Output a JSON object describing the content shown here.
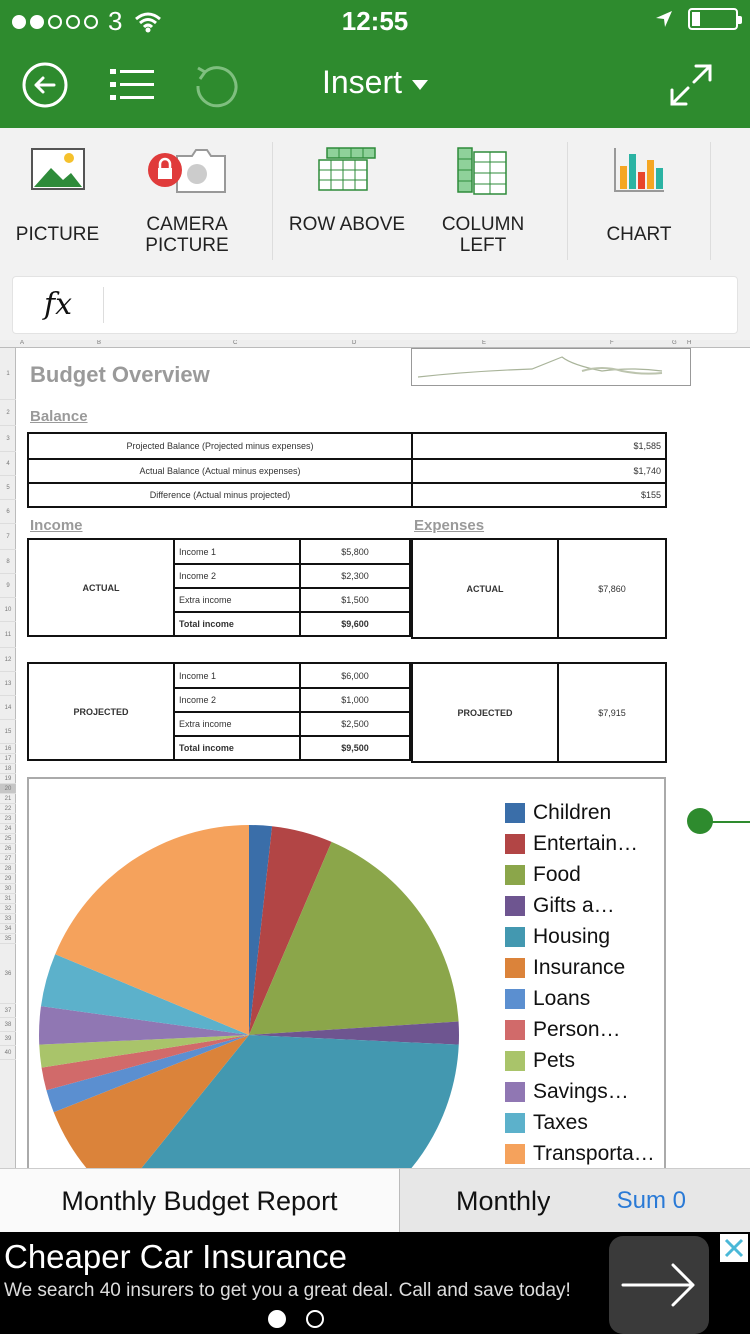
{
  "status_bar": {
    "carrier": "3",
    "time": "12:55"
  },
  "header": {
    "title": "Insert"
  },
  "ribbon": {
    "items": [
      {
        "label": "PICTURE"
      },
      {
        "label": "CAMERA PICTURE"
      },
      {
        "label": "ROW ABOVE"
      },
      {
        "label": "COLUMN LEFT"
      },
      {
        "label": "CHART"
      }
    ]
  },
  "formula_bar": {
    "fx_label": "fx",
    "value": ""
  },
  "sheet": {
    "columns": [
      "A",
      "B",
      "C",
      "D",
      "E",
      "F",
      "G",
      "H"
    ],
    "title": "Budget Overview",
    "balance_label": "Balance",
    "balance_rows": [
      {
        "label": "Projected Balance (Projected  minus expenses)",
        "value": "$1,585"
      },
      {
        "label": "Actual Balance  (Actual  minus expenses)",
        "value": "$1,740"
      },
      {
        "label": "Difference (Actual minus projected)",
        "value": "$155"
      }
    ],
    "income_label": "Income",
    "expenses_label": "Expenses",
    "actual": {
      "label": "ACTUAL",
      "rows": [
        {
          "name": "Income 1",
          "value": "$5,800"
        },
        {
          "name": "Income 2",
          "value": "$2,300"
        },
        {
          "name": "Extra income",
          "value": "$1,500"
        },
        {
          "name": "Total income",
          "value": "$9,600"
        }
      ],
      "expense_label": "ACTUAL",
      "expense_value": "$7,860"
    },
    "projected": {
      "label": "PROJECTED",
      "rows": [
        {
          "name": "Income 1",
          "value": "$6,000"
        },
        {
          "name": "Income 2",
          "value": "$1,000"
        },
        {
          "name": "Extra income",
          "value": "$2,500"
        },
        {
          "name": "Total income",
          "value": "$9,500"
        }
      ],
      "expense_label": "PROJECTED",
      "expense_value": "$7,915"
    }
  },
  "chart_data": {
    "type": "pie",
    "title": "",
    "legend_position": "right",
    "categories": [
      "Children",
      "Entertain…",
      "Food",
      "Gifts a…",
      "Housing",
      "Insurance",
      "Loans",
      "Person…",
      "Pets",
      "Savings…",
      "Taxes",
      "Transporta…"
    ],
    "values": [
      1.5,
      4,
      15,
      1.5,
      30,
      7,
      1.5,
      1.5,
      1.5,
      2.5,
      3.5,
      16
    ],
    "colors": [
      "#3a6ea9",
      "#b24545",
      "#8ba64a",
      "#6e5590",
      "#4398b0",
      "#db833a",
      "#5b8fd0",
      "#d16a6a",
      "#a9c46a",
      "#9077b3",
      "#5cb1cb",
      "#f5a25c",
      "#7faee3"
    ]
  },
  "sheet_tabs": {
    "active": "Monthly Budget Report",
    "other": "Monthly",
    "sum": "Sum 0"
  },
  "ad": {
    "title": "Cheaper Car Insurance",
    "subtitle": "We search 40 insurers to get you a great deal. Call and save today!"
  }
}
